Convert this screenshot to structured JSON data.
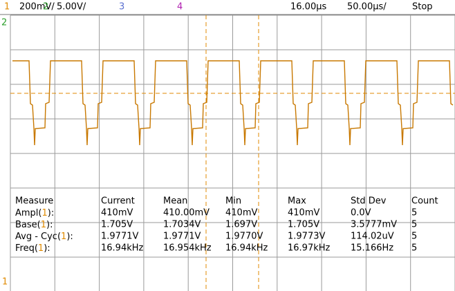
{
  "top_bar": {
    "channels": [
      {
        "number": "1",
        "scale": "200mV/",
        "color": "#e08a00"
      },
      {
        "number": "2",
        "scale": "5.00V/",
        "color": "#2ca02c"
      },
      {
        "number": "3",
        "color": "#5a6fd0"
      },
      {
        "number": "4",
        "color": "#b020b0"
      }
    ],
    "timebase_position": "16.00µs",
    "timebase_scale": "50.00µs/",
    "run_state": "Stop"
  },
  "markers": {
    "channel_2": "2",
    "channel_1": "1"
  },
  "measurements": {
    "headers": [
      "Measure",
      "Current",
      "Mean",
      "Min",
      "Max",
      "Std Dev",
      "Count"
    ],
    "rows": [
      {
        "label": {
          "prefix": "Ampl(",
          "channel": "1",
          "suffix": "):"
        },
        "cells": [
          "410mV",
          "410.00mV",
          "410mV",
          "410mV",
          "0.0V",
          "5"
        ]
      },
      {
        "label": {
          "prefix": "Base(",
          "channel": "1",
          "suffix": "):"
        },
        "cells": [
          "1.705V",
          "1.7034V",
          "1.697V",
          "1.705V",
          "3.5777mV",
          "5"
        ]
      },
      {
        "label": {
          "prefix": "Avg - Cyc(",
          "channel": "1",
          "suffix": "):"
        },
        "cells": [
          "1.9771V",
          "1.9771V",
          "1.9770V",
          "1.9773V",
          "114.02uV",
          "5"
        ]
      },
      {
        "label": {
          "prefix": "Freq(",
          "channel": "1",
          "suffix": "):"
        },
        "cells": [
          "16.94kHz",
          "16.954kHz",
          "16.94kHz",
          "16.97kHz",
          "15.166Hz",
          "5"
        ]
      }
    ]
  }
}
